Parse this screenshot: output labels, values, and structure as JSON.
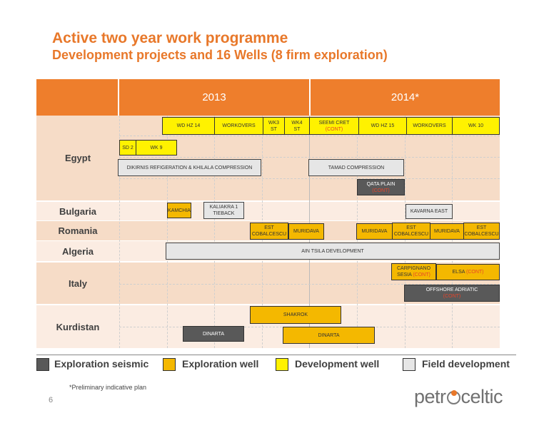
{
  "title": "Active two year work programme",
  "subtitle": "Development projects and 16 Wells (8 firm exploration)",
  "years": [
    "2013",
    "2014*"
  ],
  "countries": [
    "Egypt",
    "Bulgaria",
    "Romania",
    "Algeria",
    "Italy",
    "Kurdistan"
  ],
  "bars": {
    "wdhz14": "WD HZ 14",
    "workovers1": "WORKOVERS",
    "wk3": "WK3",
    "wk3b": "ST",
    "wk4": "WK4",
    "wk4b": "ST",
    "seemi": "SEEMI CRET",
    "seemi_cont": "(CONT)",
    "wdhz15": "WD HZ 15",
    "workovers2": "WORKOVERS",
    "wk10": "WK 10",
    "sd2": "SD 2",
    "wk9": "WK 9",
    "dikirnis": "DIKIRNIS REFIGERATION & KHILALA COMPRESSION",
    "tamad": "TAMAD COMPRESSION",
    "qata": "QATA PLAIN",
    "qata_cont": "(CONT)",
    "kamchia": "KAMCHIA",
    "kaliakra": "KALIAKRA 1",
    "kaliakra_b": "TIEBACK",
    "kavarna": "KAVARNA EAST",
    "estcob1": "EST",
    "estcob1b": "COBALCESCU",
    "muridava1": "MURIDAVA",
    "muridava2": "MURIDAVA",
    "estcob2": "EST",
    "estcob2b": "COBALCESCU",
    "muridava3": "MURIDAVA",
    "estcob3": "EST",
    "estcob3b": "COBALCESCU",
    "aintsila": "AIN TSILA DEVELOPMENT",
    "carpignano": "CARPIGNANO",
    "sesia": "SESIA",
    "sesia_cont": "(CONT)",
    "elsa": "ELSA",
    "elsa_cont": "(CONT)",
    "offshore": "OFFSHORE ADRIATIC",
    "offshore_cont": "(CONT)",
    "shakrok": "SHAKROK",
    "dinarta_seis": "DINARTA",
    "dinarta_well": "DINARTA"
  },
  "legend": {
    "seismic": "Exploration seismic",
    "expwell": "Exploration well",
    "devwell": "Development well",
    "field": "Field development"
  },
  "colors": {
    "accent": "#ee7e2c",
    "seismic": "#595959",
    "expwell": "#f4b800",
    "devwell": "#fff200",
    "field": "#e6e6e6"
  },
  "footnote": "*Preliminary indicative plan",
  "page_number": "6",
  "logo": {
    "part1": "petr",
    "part2": "celtic"
  }
}
